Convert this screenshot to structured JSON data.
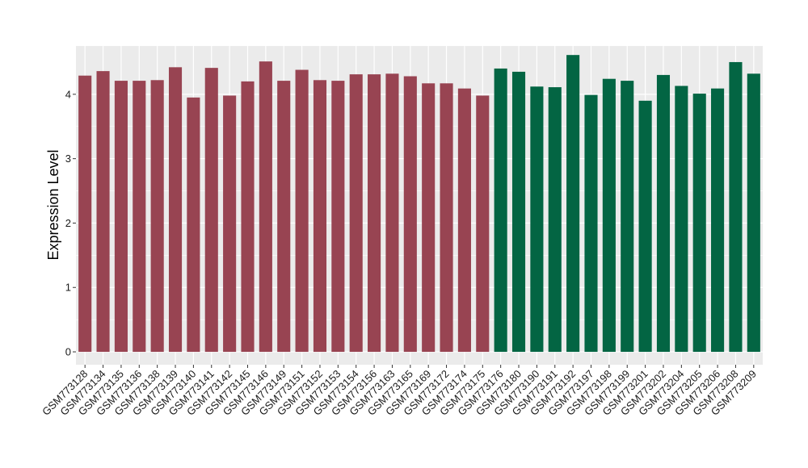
{
  "chart_data": {
    "type": "bar",
    "title": "",
    "xlabel": "",
    "ylabel": "Expression Level",
    "ylim": [
      -0.2,
      4.75
    ],
    "yticks": [
      0,
      1,
      2,
      3,
      4
    ],
    "ytick_labels": [
      "0",
      "1",
      "2",
      "3",
      "4"
    ],
    "grid": true,
    "legend": "none",
    "panel_background": "#ebebeb",
    "grid_color": "#ffffff",
    "categories": [
      "GSM773128",
      "GSM773134",
      "GSM773135",
      "GSM773136",
      "GSM773138",
      "GSM773139",
      "GSM773140",
      "GSM773141",
      "GSM773142",
      "GSM773145",
      "GSM773146",
      "GSM773149",
      "GSM773151",
      "GSM773152",
      "GSM773153",
      "GSM773154",
      "GSM773156",
      "GSM773163",
      "GSM773165",
      "GSM773169",
      "GSM773172",
      "GSM773174",
      "GSM773175",
      "GSM773176",
      "GSM773180",
      "GSM773190",
      "GSM773191",
      "GSM773192",
      "GSM773197",
      "GSM773198",
      "GSM773199",
      "GSM773201",
      "GSM773202",
      "GSM773204",
      "GSM773205",
      "GSM773206",
      "GSM773208",
      "GSM773209"
    ],
    "values": [
      4.29,
      4.36,
      4.21,
      4.21,
      4.22,
      4.42,
      3.95,
      4.41,
      3.98,
      4.2,
      4.51,
      4.21,
      4.38,
      4.22,
      4.21,
      4.31,
      4.31,
      4.32,
      4.28,
      4.17,
      4.17,
      4.09,
      3.98,
      4.4,
      4.35,
      4.12,
      4.11,
      4.61,
      3.99,
      4.24,
      4.21,
      3.9,
      4.3,
      4.13,
      4.01,
      4.09,
      4.5,
      4.32
    ],
    "groups": [
      0,
      0,
      0,
      0,
      0,
      0,
      0,
      0,
      0,
      0,
      0,
      0,
      0,
      0,
      0,
      0,
      0,
      0,
      0,
      0,
      0,
      0,
      0,
      1,
      1,
      1,
      1,
      1,
      1,
      1,
      1,
      1,
      1,
      1,
      1,
      1,
      1,
      1
    ],
    "group_colors": [
      "#984452",
      "#036543"
    ]
  }
}
